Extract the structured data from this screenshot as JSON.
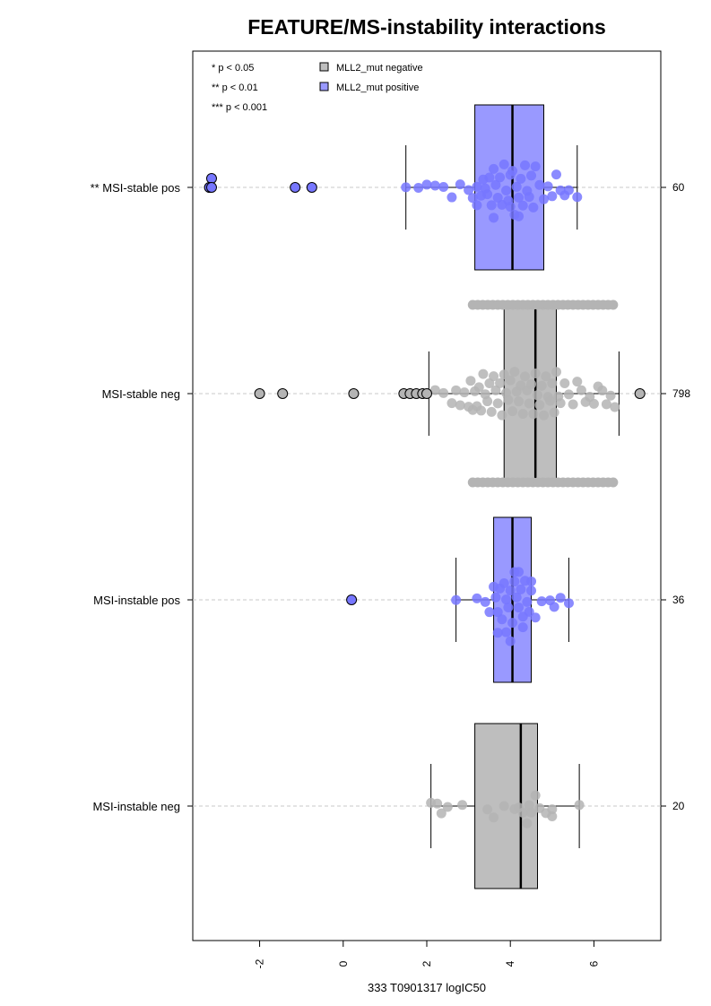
{
  "chart_data": {
    "type": "box",
    "orientation": "horizontal",
    "title": "FEATURE/MS-instability interactions",
    "xlabel": "333 T0901317 logIC50",
    "xlim": [
      -3.6,
      7.6
    ],
    "x_ticks": [
      -2,
      0,
      2,
      4,
      6
    ],
    "x_tick_labels": [
      "-2",
      "0",
      "2",
      "4",
      "6"
    ],
    "grid": false,
    "significance_legend": [
      "* p < 0.05",
      "** p < 0.01",
      "*** p < 0.001"
    ],
    "series_legend": [
      {
        "name": "MLL2_mut negative",
        "color": "#bebebe"
      },
      {
        "name": "MLL2_mut positive",
        "color": "#9999ff"
      }
    ],
    "groups": [
      {
        "label": "** MSI-stable pos",
        "n": "60",
        "series": "MLL2_mut positive",
        "color": "#9999ff",
        "point_color": "#7777ff",
        "whisker_low": 1.5,
        "q1": 3.15,
        "median": 4.05,
        "q3": 4.8,
        "whisker_high": 5.6,
        "outliers": [
          -3.2,
          -3.15,
          -3.2,
          -3.15,
          -1.15,
          -0.75
        ],
        "points": [
          1.5,
          1.8,
          2.0,
          2.2,
          2.4,
          2.6,
          2.8,
          3.0,
          3.1,
          3.2,
          3.3,
          3.35,
          3.4,
          3.45,
          3.5,
          3.55,
          3.6,
          3.65,
          3.7,
          3.75,
          3.8,
          3.85,
          3.9,
          3.95,
          4.0,
          4.0,
          4.05,
          4.1,
          4.15,
          4.2,
          4.25,
          4.3,
          4.35,
          4.4,
          4.45,
          4.5,
          4.55,
          4.6,
          4.7,
          4.8,
          4.9,
          5.0,
          5.1,
          5.2,
          5.3,
          5.4,
          5.6,
          3.2,
          3.6,
          4.2
        ]
      },
      {
        "label": "MSI-stable neg",
        "n": "798",
        "series": "MLL2_mut negative",
        "color": "#bebebe",
        "point_color": "#b4b4b4",
        "whisker_low": 2.05,
        "q1": 3.85,
        "median": 4.6,
        "q3": 5.1,
        "whisker_high": 6.6,
        "outliers": [
          -2.0,
          -1.45,
          0.25,
          1.45,
          1.6,
          1.75,
          1.9,
          2.0,
          7.1
        ],
        "points": [
          2.2,
          2.4,
          2.6,
          2.7,
          2.8,
          2.9,
          3.0,
          3.05,
          3.1,
          3.15,
          3.2,
          3.25,
          3.3,
          3.35,
          3.4,
          3.45,
          3.5,
          3.55,
          3.6,
          3.65,
          3.7,
          3.75,
          3.8,
          3.85,
          3.9,
          3.95,
          4.0,
          4.05,
          4.1,
          4.15,
          4.2,
          4.25,
          4.3,
          4.35,
          4.4,
          4.45,
          4.5,
          4.55,
          4.6,
          4.65,
          4.7,
          4.75,
          4.8,
          4.85,
          4.9,
          4.95,
          5.0,
          5.05,
          5.1,
          5.15,
          5.2,
          5.3,
          5.4,
          5.5,
          5.6,
          5.7,
          5.8,
          5.9,
          6.0,
          6.1,
          6.2,
          6.3,
          6.4,
          6.5
        ]
      },
      {
        "label": "MSI-instable pos",
        "n": "36",
        "series": "MLL2_mut positive",
        "color": "#9999ff",
        "point_color": "#7777ff",
        "whisker_low": 2.7,
        "q1": 3.6,
        "median": 4.05,
        "q3": 4.5,
        "whisker_high": 5.4,
        "outliers": [
          0.2
        ],
        "points": [
          2.7,
          3.2,
          3.4,
          3.5,
          3.6,
          3.65,
          3.7,
          3.75,
          3.8,
          3.85,
          3.9,
          3.95,
          4.0,
          4.05,
          4.1,
          4.15,
          4.2,
          4.25,
          4.3,
          4.35,
          4.4,
          4.45,
          4.5,
          4.6,
          4.75,
          4.95,
          5.05,
          5.2,
          5.4,
          3.9,
          4.1,
          4.3,
          3.7,
          4.2,
          4.5,
          4.0
        ]
      },
      {
        "label": "MSI-instable neg",
        "n": "20",
        "series": "MLL2_mut negative",
        "color": "#bebebe",
        "point_color": "#b4b4b4",
        "whisker_low": 2.1,
        "q1": 3.15,
        "median": 4.25,
        "q3": 4.65,
        "whisker_high": 5.65,
        "outliers": [],
        "points": [
          2.1,
          2.25,
          2.35,
          2.5,
          2.85,
          3.45,
          3.6,
          3.85,
          4.1,
          4.2,
          4.3,
          4.45,
          4.5,
          4.6,
          4.7,
          4.85,
          5.0,
          5.0,
          5.65,
          4.4
        ]
      }
    ]
  }
}
